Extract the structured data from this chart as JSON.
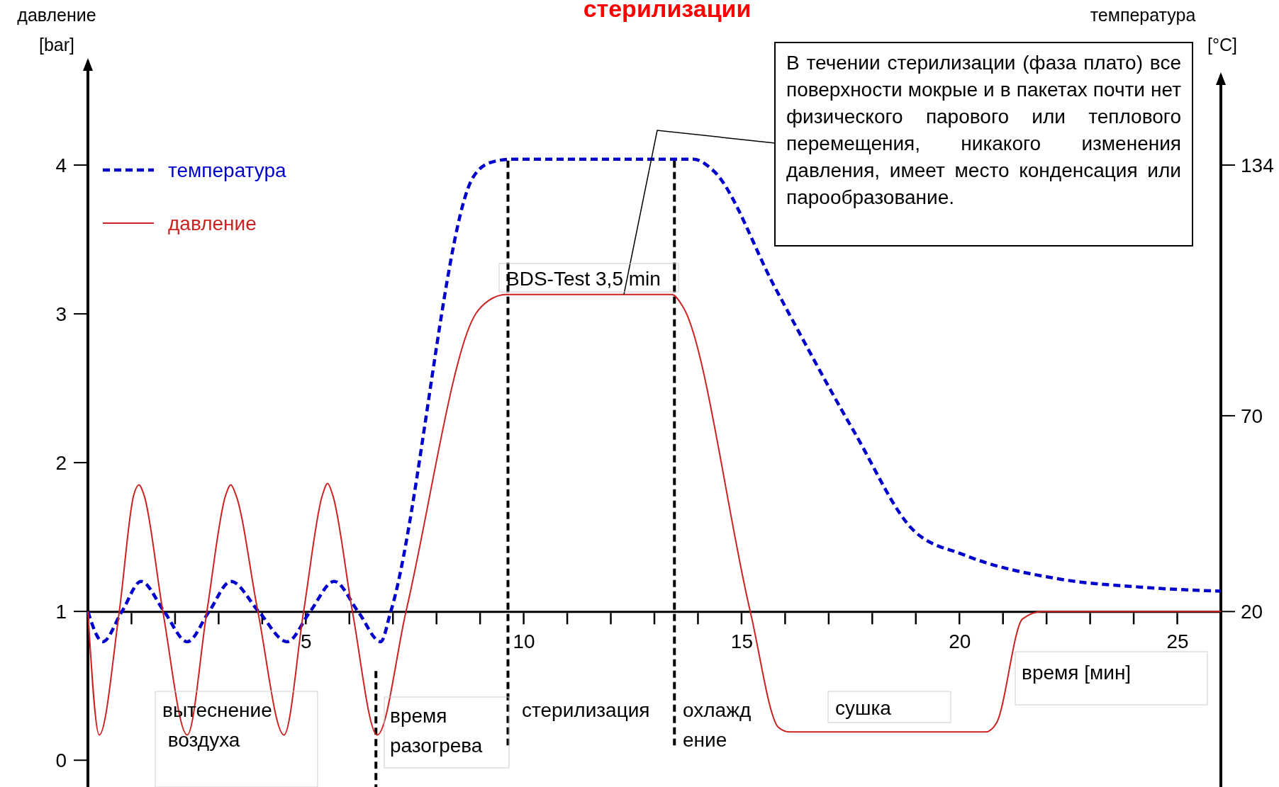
{
  "chart_data": {
    "type": "line",
    "title": "стерилизации",
    "xlabel": "время [мин]",
    "ylabel": "давление\n[bar]",
    "y2label": "температура\n[°C]",
    "xlim": [
      0,
      26
    ],
    "xticks": [
      5,
      10,
      15,
      20,
      25
    ],
    "ylim": [
      -0.18,
      4.7
    ],
    "yticks": [
      0,
      1,
      2,
      3,
      4
    ],
    "y2lim": [
      -24.8,
      160.6
    ],
    "y2ticks": [
      20,
      70,
      134
    ],
    "legend": "top left",
    "grid": false,
    "marker": "none",
    "series": [
      {
        "name": "температура",
        "color": "#0000cc",
        "axis": "y2",
        "line_style": "dashed",
        "x": [
          0,
          0.34,
          0.78,
          1.22,
          1.75,
          2.28,
          2.78,
          3.28,
          3.92,
          4.57,
          5.1,
          5.65,
          6.2,
          6.72,
          6.95,
          8.84,
          9.2,
          9.7,
          13.9,
          14.35,
          15.76,
          17.6,
          18.95,
          20.1,
          22.3,
          24.2,
          26.0
        ],
        "values": [
          20,
          12.3,
          20,
          27.7,
          20,
          12.3,
          20,
          27.7,
          20,
          12.3,
          20,
          27.7,
          20,
          12.3,
          20,
          130.9,
          134.5,
          135.5,
          135.5,
          132.6,
          102.9,
          65.6,
          40.7,
          34.5,
          28.3,
          26.2,
          25.2
        ]
      },
      {
        "name": "давление",
        "color": "#cc2222",
        "line_style": "solid",
        "x": [
          0,
          0.26,
          0.72,
          1.05,
          1.17,
          1.29,
          1.72,
          2.28,
          2.73,
          3.16,
          3.28,
          3.4,
          3.9,
          4.5,
          4.95,
          5.38,
          5.5,
          5.62,
          6.07,
          6.64,
          7.3,
          8.9,
          9.2,
          9.6,
          13.4,
          13.65,
          15.2,
          15.85,
          16.1,
          20.6,
          20.85,
          21.45,
          21.9,
          26.0
        ],
        "values": [
          1.0,
          0.17,
          1.0,
          1.78,
          1.85,
          1.78,
          1.0,
          0.17,
          1.0,
          1.78,
          1.85,
          1.78,
          1.0,
          0.17,
          1.0,
          1.78,
          1.86,
          1.78,
          1.0,
          0.17,
          1.0,
          3.0,
          3.09,
          3.13,
          3.13,
          3.05,
          1.0,
          0.22,
          0.19,
          0.19,
          0.25,
          0.95,
          1.0,
          1.0
        ]
      }
    ],
    "ref_lines": [
      {
        "axis": "x",
        "value": 6.61,
        "color": "#000000",
        "line_style": "dashed"
      },
      {
        "axis": "x",
        "value": 9.64,
        "color": "#000000",
        "line_style": "dashed"
      },
      {
        "axis": "x",
        "value": 13.46,
        "color": "#000000",
        "line_style": "dashed"
      }
    ],
    "annotations": [
      {
        "text": "В течении стерилизации (фаза плато) все поверхности мокрые и в пакетах почти нет физического парового или теплового перемещения, никакого изменения давления, имеет место конденсация или парообразование.",
        "x": 12.3,
        "y": 3.13
      },
      "BDS-Test 3,5 min",
      "вытеснение\n воздуха",
      "время\nразогрева",
      "стерилизация",
      "охлажд\nение",
      "сушка"
    ]
  }
}
